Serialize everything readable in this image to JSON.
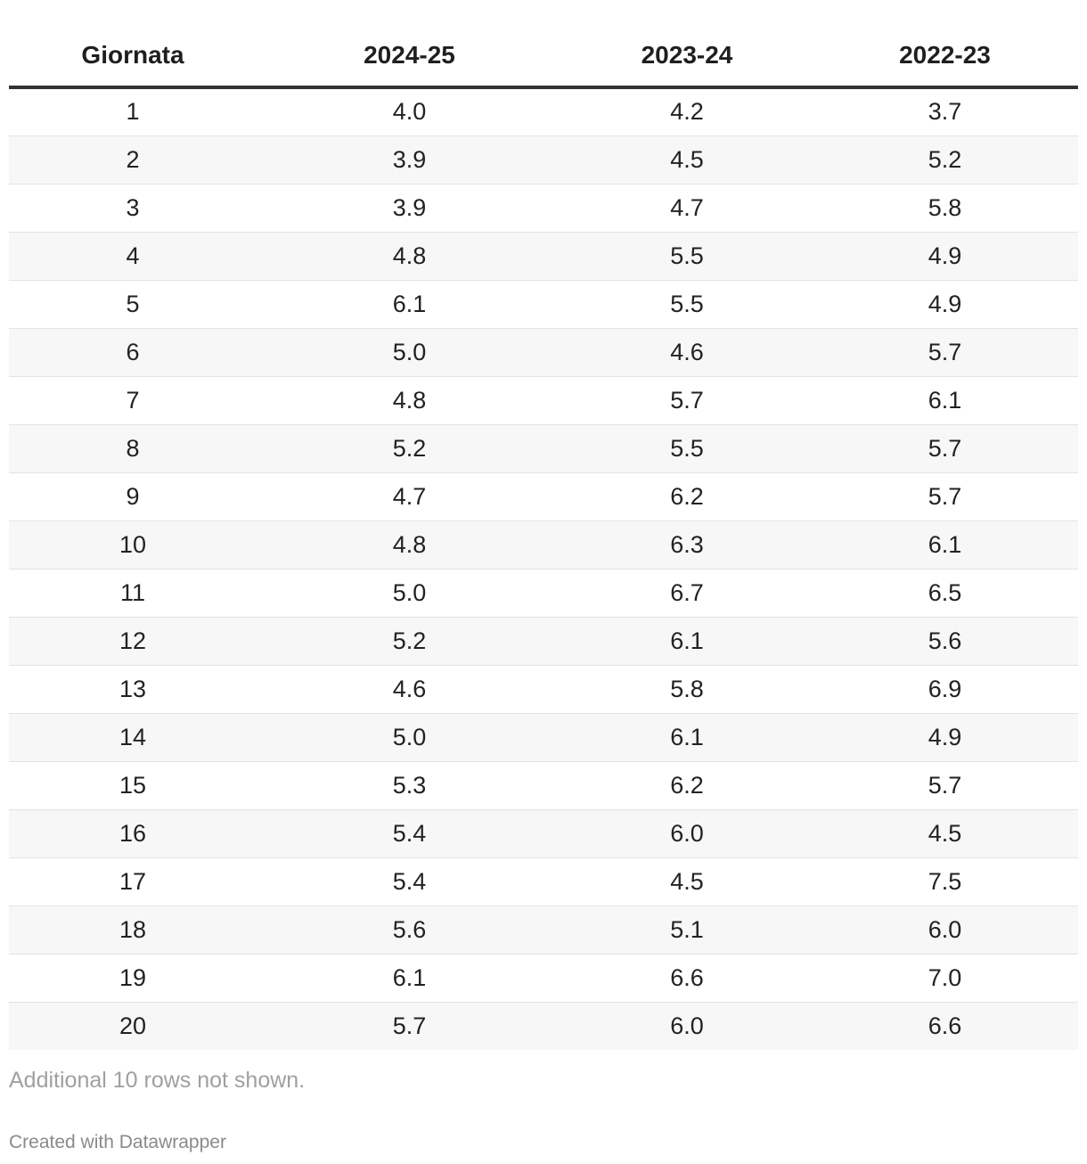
{
  "chart_data": {
    "type": "table",
    "columns": [
      "Giornata",
      "2024-25",
      "2023-24",
      "2022-23"
    ],
    "rows": [
      [
        "1",
        "4.0",
        "4.2",
        "3.7"
      ],
      [
        "2",
        "3.9",
        "4.5",
        "5.2"
      ],
      [
        "3",
        "3.9",
        "4.7",
        "5.8"
      ],
      [
        "4",
        "4.8",
        "5.5",
        "4.9"
      ],
      [
        "5",
        "6.1",
        "5.5",
        "4.9"
      ],
      [
        "6",
        "5.0",
        "4.6",
        "5.7"
      ],
      [
        "7",
        "4.8",
        "5.7",
        "6.1"
      ],
      [
        "8",
        "5.2",
        "5.5",
        "5.7"
      ],
      [
        "9",
        "4.7",
        "6.2",
        "5.7"
      ],
      [
        "10",
        "4.8",
        "6.3",
        "6.1"
      ],
      [
        "11",
        "5.0",
        "6.7",
        "6.5"
      ],
      [
        "12",
        "5.2",
        "6.1",
        "5.6"
      ],
      [
        "13",
        "4.6",
        "5.8",
        "6.9"
      ],
      [
        "14",
        "5.0",
        "6.1",
        "4.9"
      ],
      [
        "15",
        "5.3",
        "6.2",
        "5.7"
      ],
      [
        "16",
        "5.4",
        "6.0",
        "4.5"
      ],
      [
        "17",
        "5.4",
        "4.5",
        "7.5"
      ],
      [
        "18",
        "5.6",
        "5.1",
        "6.0"
      ],
      [
        "19",
        "6.1",
        "6.6",
        "7.0"
      ],
      [
        "20",
        "5.7",
        "6.0",
        "6.6"
      ]
    ],
    "footnote": "Additional 10 rows not shown.",
    "credit": "Created with Datawrapper"
  }
}
